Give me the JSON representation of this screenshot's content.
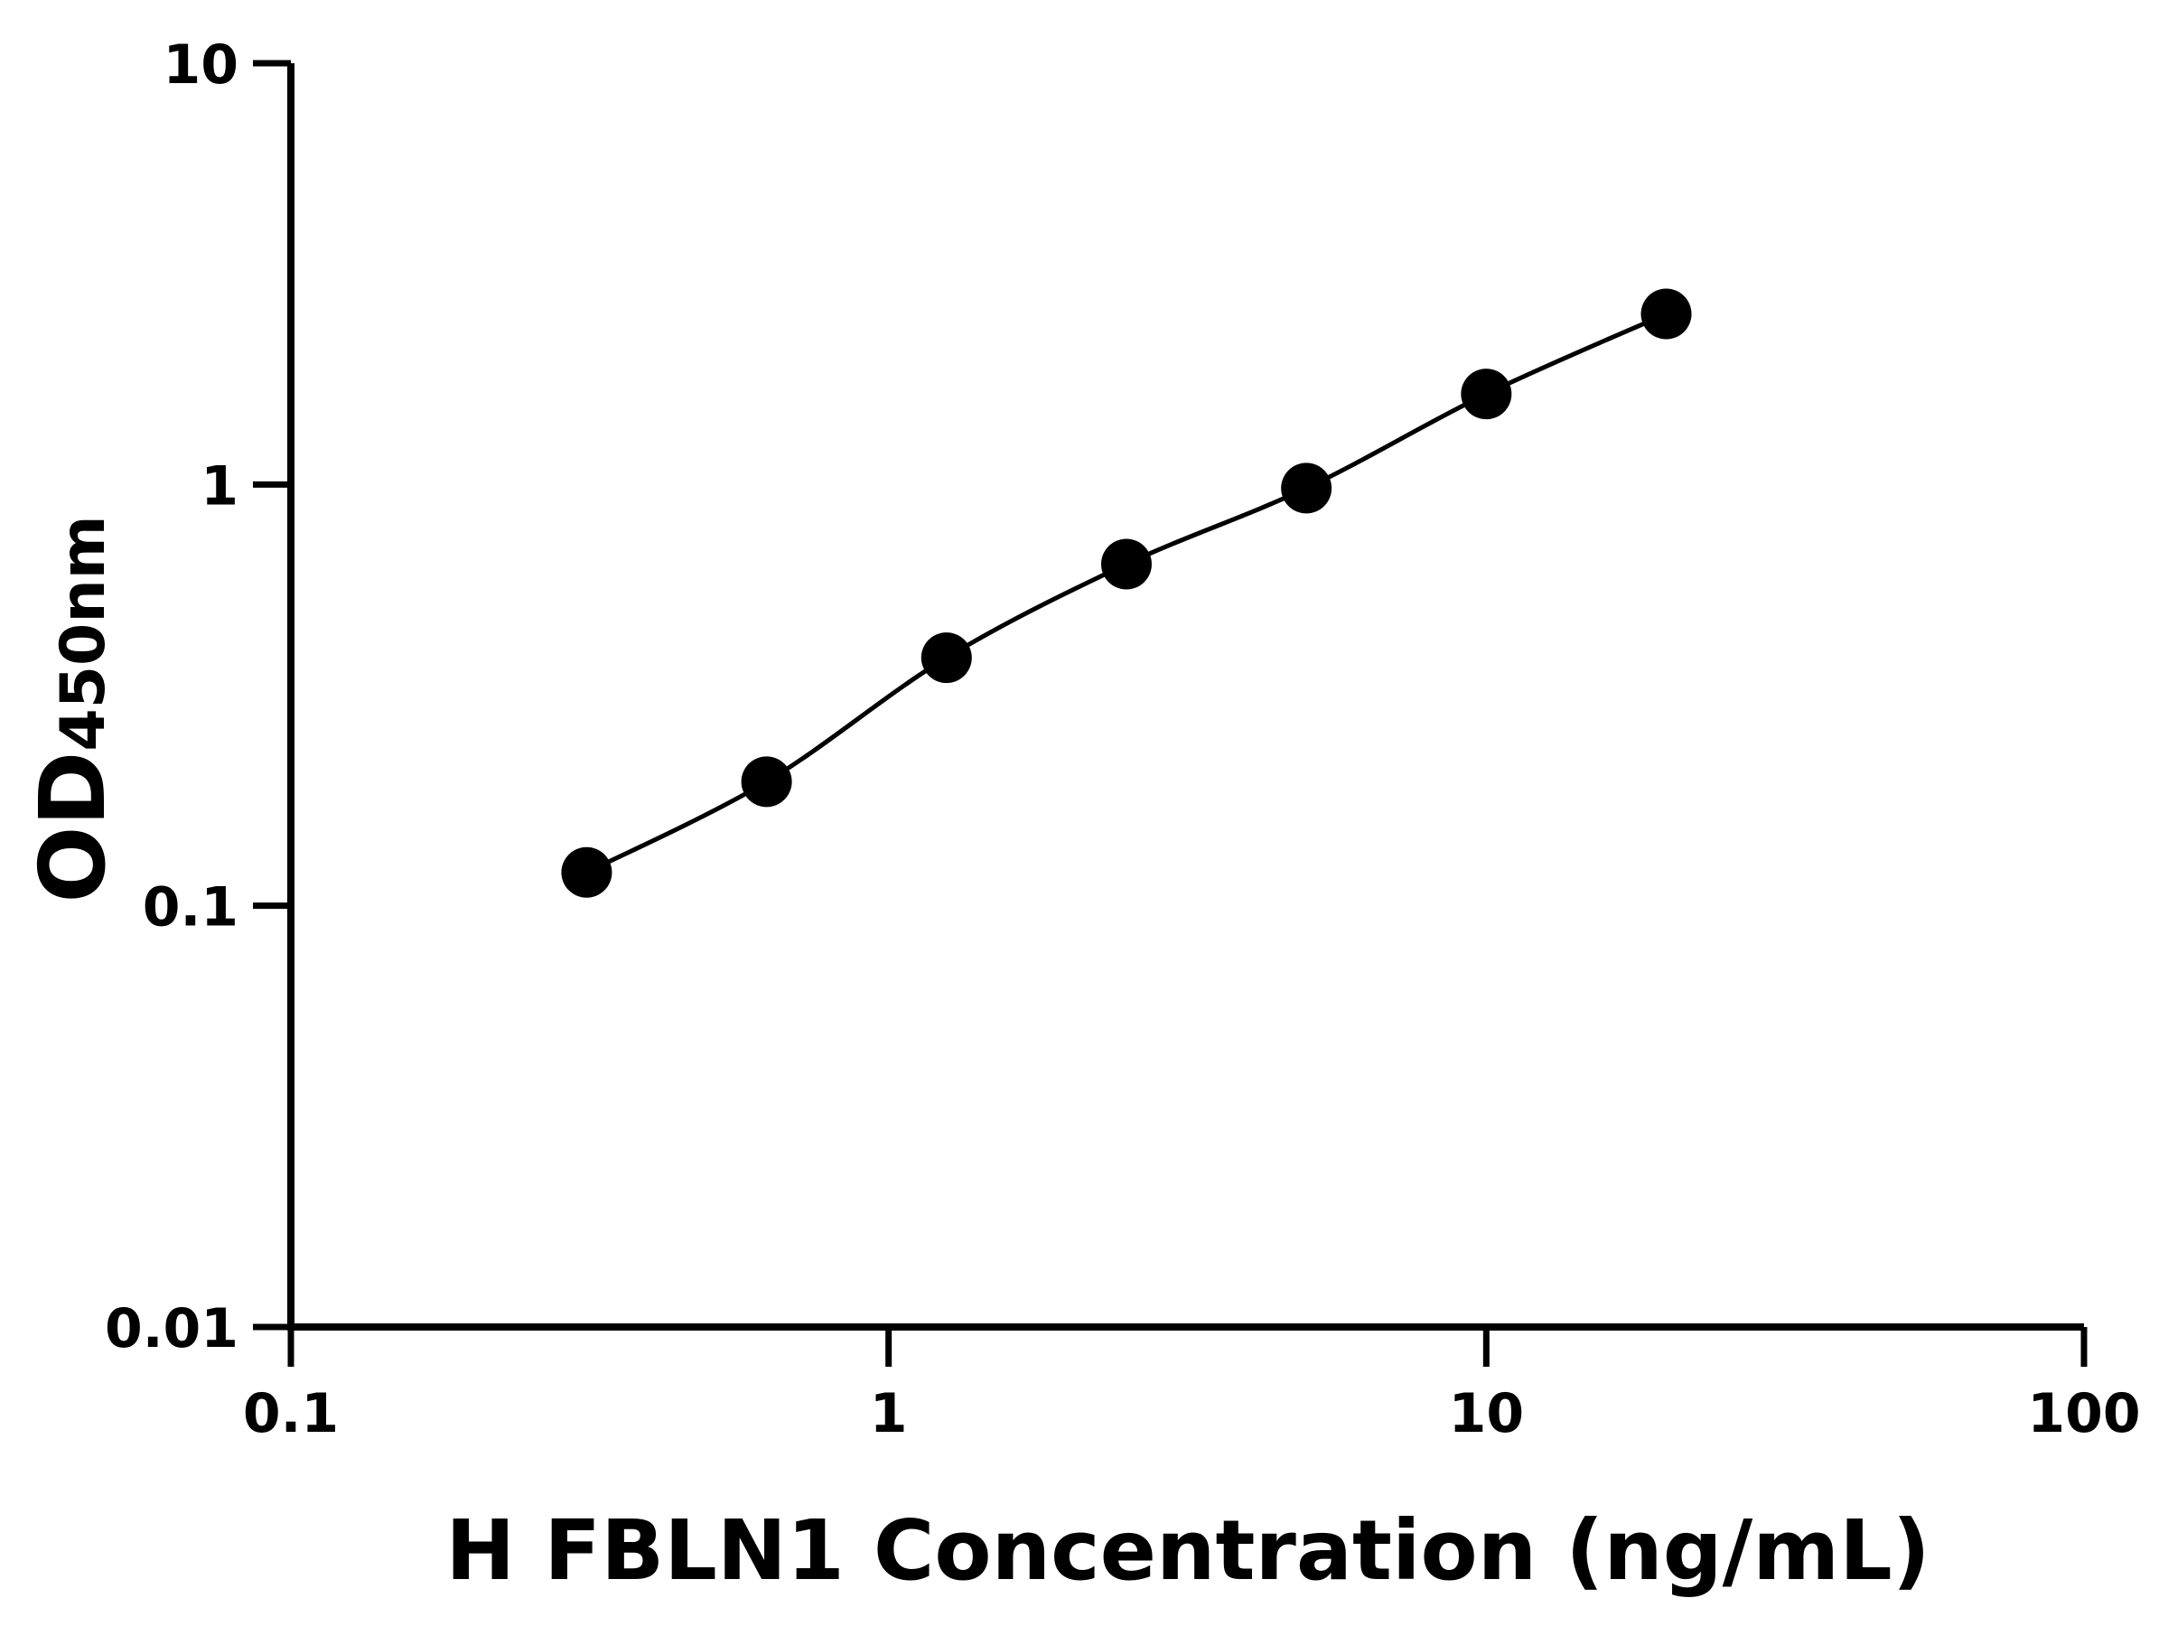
{
  "chart_data": {
    "type": "line",
    "title": "",
    "xlabel": "H FBLN1 Concentration (ng/mL)",
    "ylabel_main": "OD",
    "ylabel_sub": "450nm",
    "x_scale": "log",
    "y_scale": "log",
    "xlim": [
      0.1,
      100
    ],
    "ylim": [
      0.01,
      10
    ],
    "x_ticks": [
      0.1,
      1,
      10,
      100
    ],
    "x_tick_labels": [
      "0.1",
      "1",
      "10",
      "100"
    ],
    "y_ticks": [
      0.01,
      0.1,
      1,
      10
    ],
    "y_tick_labels": [
      "0.01",
      "0.1",
      "1",
      "10"
    ],
    "grid": false,
    "legend": "none",
    "series": [
      {
        "x": [
          0.3125,
          0.625,
          1.25,
          2.5,
          5,
          10,
          20
        ],
        "y": [
          0.12,
          0.197,
          0.388,
          0.647,
          0.98,
          1.64,
          2.54
        ],
        "marker": "circle",
        "color": "#000000",
        "fit_line": true
      }
    ]
  }
}
